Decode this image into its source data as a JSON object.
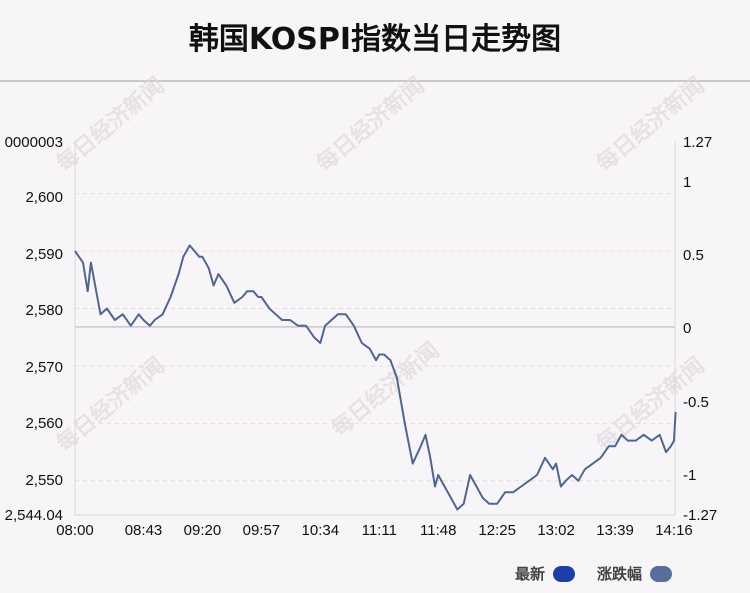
{
  "title": "韩国KOSPI指数当日走势图",
  "watermark": "每日经济新闻",
  "legend": {
    "latest": "最新",
    "change": "涨跌幅",
    "latest_color": "#1f3fa8",
    "change_color": "#5a6e9e"
  },
  "line_color": "#51668f",
  "chart_data": {
    "type": "line",
    "title": "韩国KOSPI指数当日走势图",
    "x_tick_labels": [
      "08:00",
      "08:43",
      "09:20",
      "09:57",
      "10:34",
      "11:11",
      "11:48",
      "12:25",
      "13:02",
      "13:39",
      "14:16"
    ],
    "y_left_tick_labels": [
      "2,544.04",
      "2,550",
      "2,560",
      "2,570",
      "2,580",
      "2,590",
      "2,600",
      "0000003"
    ],
    "y_right_tick_labels": [
      "-1.27",
      "-1",
      "-0.5",
      "0",
      "0.5",
      "1",
      "1.27"
    ],
    "ylim": [
      2544.04,
      2609.0
    ],
    "baseline": 2576.8,
    "grid": true,
    "legend_position": "bottom-right",
    "series": [
      {
        "name": "最新",
        "x": [
          "08:00",
          "08:05",
          "08:08",
          "08:10",
          "08:12",
          "08:14",
          "08:16",
          "08:20",
          "08:25",
          "08:30",
          "08:35",
          "08:40",
          "08:43",
          "08:47",
          "08:50",
          "08:55",
          "09:00",
          "09:05",
          "09:08",
          "09:12",
          "09:15",
          "09:18",
          "09:20",
          "09:24",
          "09:27",
          "09:30",
          "09:35",
          "09:40",
          "09:45",
          "09:48",
          "09:52",
          "09:55",
          "09:57",
          "10:02",
          "10:06",
          "10:10",
          "10:15",
          "10:20",
          "10:25",
          "10:30",
          "10:34",
          "10:37",
          "10:41",
          "10:45",
          "10:50",
          "10:55",
          "11:00",
          "11:05",
          "11:07",
          "11:09",
          "11:11",
          "11:14",
          "11:18",
          "11:22",
          "11:27",
          "11:32",
          "11:37",
          "11:40",
          "11:43",
          "11:46",
          "11:48",
          "11:52",
          "11:56",
          "12:00",
          "12:04",
          "12:08",
          "12:12",
          "12:16",
          "12:20",
          "12:25",
          "12:30",
          "12:35",
          "12:40",
          "12:45",
          "12:50",
          "12:55",
          "13:00",
          "13:02",
          "13:05",
          "13:08",
          "13:12",
          "13:16",
          "13:20",
          "13:25",
          "13:30",
          "13:35",
          "13:39",
          "13:43",
          "13:47",
          "13:52",
          "13:57",
          "14:02",
          "14:07",
          "14:11",
          "14:14",
          "14:16",
          "14:17"
        ],
        "y": [
          2590,
          2588,
          2583,
          2588,
          2585,
          2582,
          2579,
          2580,
          2578,
          2579,
          2577,
          2579,
          2578,
          2577,
          2578,
          2579,
          2582,
          2586,
          2589,
          2591,
          2590,
          2589,
          2589,
          2587,
          2584,
          2586,
          2584,
          2581,
          2582,
          2583,
          2583,
          2582,
          2582,
          2580,
          2579,
          2578,
          2578,
          2577,
          2577,
          2575,
          2574,
          2577,
          2578,
          2579,
          2579,
          2577,
          2574,
          2573,
          2572,
          2571,
          2572,
          2572,
          2571,
          2568,
          2560,
          2553,
          2556,
          2558,
          2554,
          2549,
          2551,
          2549,
          2547,
          2545,
          2546,
          2551,
          2549,
          2547,
          2546,
          2546,
          2548,
          2548,
          2549,
          2550,
          2551,
          2554,
          2552,
          2553,
          2549,
          2550,
          2551,
          2550,
          2552,
          2553,
          2554,
          2556,
          2556,
          2558,
          2557,
          2557,
          2558,
          2557,
          2558,
          2555,
          2556,
          2557,
          2562
        ]
      }
    ]
  }
}
